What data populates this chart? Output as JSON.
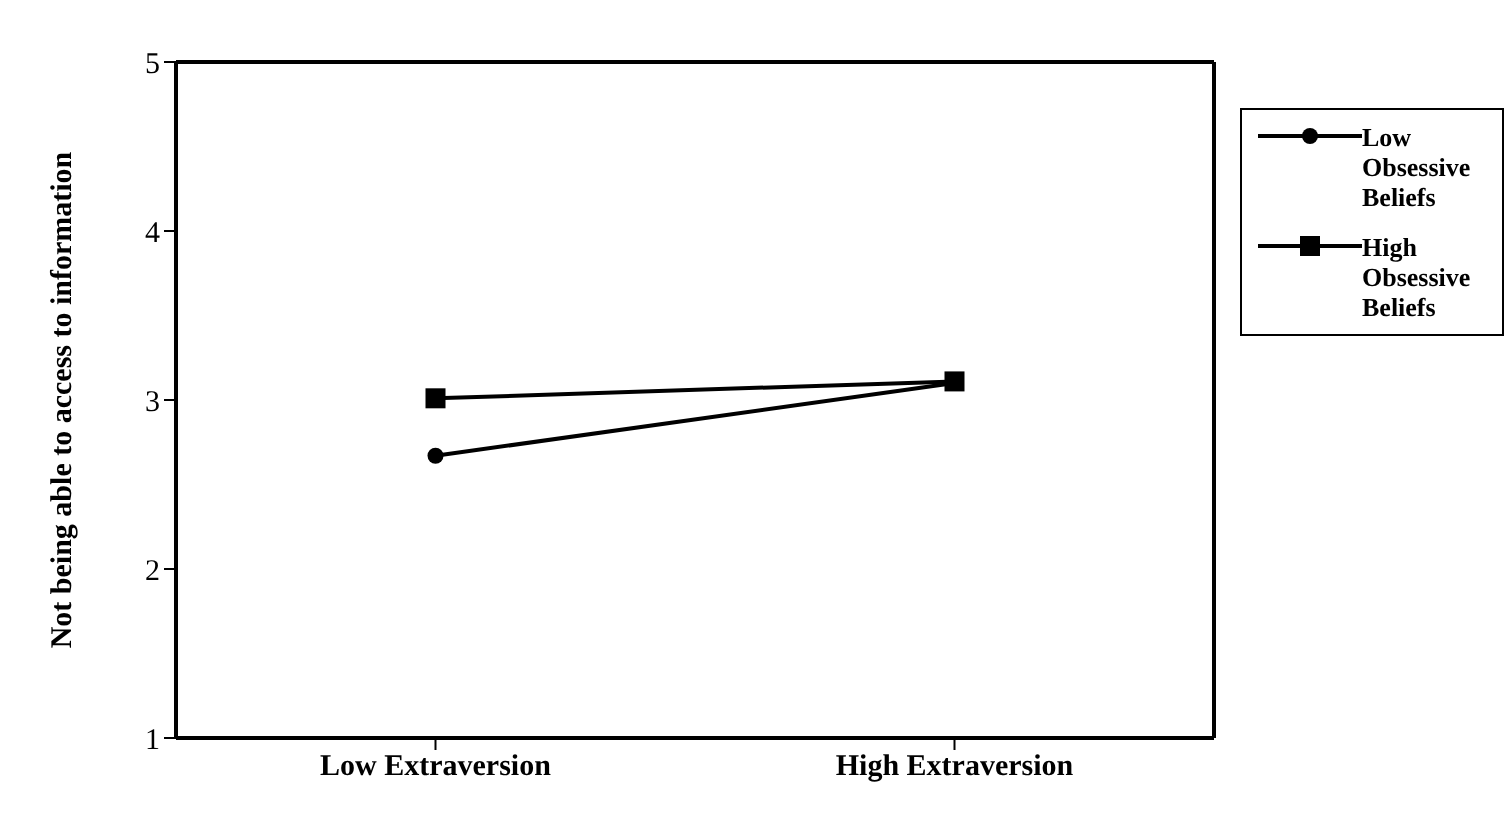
{
  "chart_data": {
    "type": "line",
    "ylabel": "Not being able to access to information",
    "categories": [
      "Low Extraversion",
      "High Extraversion"
    ],
    "series": [
      {
        "name": "Low Obsessive Beliefs",
        "color": "#000000",
        "values": [
          2.67,
          3.1
        ],
        "marker": "circle"
      },
      {
        "name": "High Obsessive Beliefs",
        "color": "#000000",
        "values": [
          3.01,
          3.11
        ],
        "marker": "square"
      }
    ],
    "ylim": [
      1,
      5
    ],
    "yticks": [
      1,
      2,
      3,
      4,
      5
    ],
    "legend": "right",
    "line_style": "solid"
  }
}
